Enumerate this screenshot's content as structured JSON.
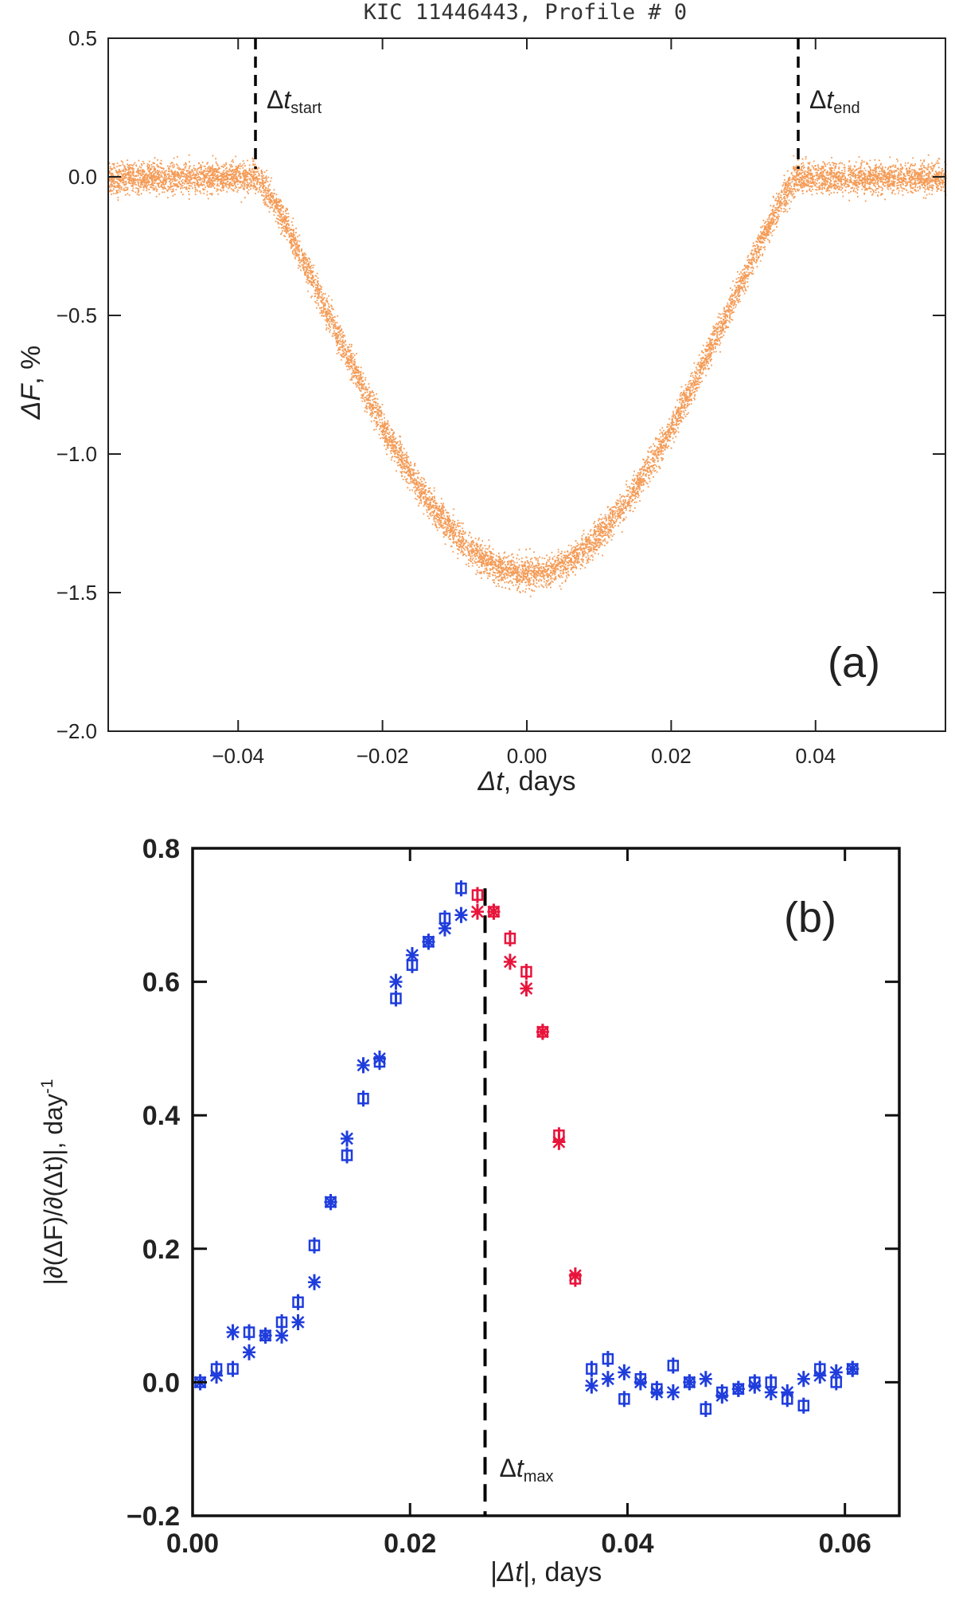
{
  "chart_data": [
    {
      "type": "scatter",
      "panel_label": "(a)",
      "title": "KIC 11446443, Profile # 0",
      "xlabel": {
        "sym": "Δt",
        "rest": ", days"
      },
      "ylabel": {
        "sym": "ΔF",
        "rest": ", %"
      },
      "xlim": [
        -0.058,
        0.058
      ],
      "ylim": [
        -2.0,
        0.5
      ],
      "xticks": [
        -0.04,
        -0.02,
        0.0,
        0.02,
        0.04
      ],
      "xtick_labels": [
        "−0.04",
        "−0.02",
        "0.00",
        "0.02",
        "0.04"
      ],
      "yticks": [
        0.5,
        0.0,
        -0.5,
        -1.0,
        -1.5,
        -2.0
      ],
      "ytick_labels": [
        "0.5",
        "0.0",
        "−0.5",
        "−1.0",
        "−1.5",
        "−2.0"
      ],
      "color": "#f07a1e",
      "transit_model": {
        "t_start": -0.0376,
        "t_end": 0.0376,
        "depth": -1.43,
        "noise_sd": 0.028,
        "n_points": 9000
      },
      "markers": [
        {
          "x": -0.0376,
          "label_sym": "Δt",
          "label_sub": "start"
        },
        {
          "x": 0.0376,
          "label_sym": "Δt",
          "label_sub": "end"
        }
      ]
    },
    {
      "type": "scatter",
      "panel_label": "(b)",
      "xlabel": {
        "sym": "|Δt|",
        "rest": ", days"
      },
      "ylabel": {
        "text": "|∂(ΔF)/∂(Δt)|, day",
        "sup": "-1"
      },
      "xlim": [
        0.0,
        0.065
      ],
      "ylim": [
        -0.2,
        0.8
      ],
      "xticks": [
        0.0,
        0.02,
        0.04,
        0.06
      ],
      "xtick_labels": [
        "0.00",
        "0.02",
        "0.04",
        "0.06"
      ],
      "yticks": [
        0.8,
        0.6,
        0.4,
        0.2,
        0.0,
        -0.2
      ],
      "ytick_labels": [
        "0.8",
        "0.6",
        "0.4",
        "0.2",
        "0.0",
        "−0.2"
      ],
      "marker": {
        "x": 0.0269,
        "label_sym": "Δt",
        "label_sub": "max"
      },
      "colors": {
        "blue": "#1f3ddc",
        "red": "#e8143c"
      },
      "series": [
        {
          "marker": "square",
          "x": [
            0.0007,
            0.0022,
            0.0037,
            0.0052,
            0.0067,
            0.0082,
            0.0097,
            0.0112,
            0.0127,
            0.0142,
            0.0157,
            0.0172,
            0.0187,
            0.0202,
            0.0217,
            0.0232,
            0.0247,
            0.0262,
            0.0277,
            0.0292,
            0.0307,
            0.0322,
            0.0337,
            0.0352,
            0.0367,
            0.0382,
            0.0397,
            0.0412,
            0.0427,
            0.0442,
            0.0457,
            0.0472,
            0.0487,
            0.0502,
            0.0517,
            0.0532,
            0.0547,
            0.0562,
            0.0577,
            0.0592,
            0.0607
          ],
          "y": [
            0.0,
            0.02,
            0.02,
            0.075,
            0.07,
            0.09,
            0.12,
            0.205,
            0.27,
            0.34,
            0.425,
            0.48,
            0.575,
            0.625,
            0.66,
            0.695,
            0.74,
            0.73,
            0.705,
            0.665,
            0.615,
            0.525,
            0.37,
            0.155,
            0.02,
            0.035,
            -0.025,
            0.005,
            -0.01,
            0.025,
            0.0,
            -0.04,
            -0.015,
            -0.01,
            0.0,
            0.0,
            -0.025,
            -0.035,
            0.02,
            0.0,
            0.02
          ],
          "colors": [
            "blue",
            "blue",
            "blue",
            "blue",
            "blue",
            "blue",
            "blue",
            "blue",
            "blue",
            "blue",
            "blue",
            "blue",
            "blue",
            "blue",
            "blue",
            "blue",
            "blue",
            "red",
            "red",
            "red",
            "red",
            "red",
            "red",
            "red",
            "blue",
            "blue",
            "blue",
            "blue",
            "blue",
            "blue",
            "blue",
            "blue",
            "blue",
            "blue",
            "blue",
            "blue",
            "blue",
            "blue",
            "blue",
            "blue",
            "blue"
          ]
        },
        {
          "marker": "star",
          "x": [
            0.0007,
            0.0022,
            0.0037,
            0.0052,
            0.0067,
            0.0082,
            0.0097,
            0.0112,
            0.0127,
            0.0142,
            0.0157,
            0.0172,
            0.0187,
            0.0202,
            0.0217,
            0.0232,
            0.0247,
            0.0262,
            0.0277,
            0.0292,
            0.0307,
            0.0322,
            0.0337,
            0.0352,
            0.0367,
            0.0382,
            0.0397,
            0.0412,
            0.0427,
            0.0442,
            0.0457,
            0.0472,
            0.0487,
            0.0502,
            0.0517,
            0.0532,
            0.0547,
            0.0562,
            0.0577,
            0.0592,
            0.0607
          ],
          "y": [
            0.0,
            0.01,
            0.075,
            0.045,
            0.07,
            0.07,
            0.09,
            0.15,
            0.27,
            0.365,
            0.475,
            0.485,
            0.6,
            0.64,
            0.66,
            0.68,
            0.7,
            0.705,
            0.705,
            0.63,
            0.59,
            0.525,
            0.36,
            0.16,
            -0.005,
            0.005,
            0.015,
            0.0,
            -0.015,
            -0.015,
            0.0,
            0.005,
            -0.02,
            -0.01,
            -0.005,
            -0.015,
            -0.015,
            0.005,
            0.01,
            0.015,
            0.02
          ],
          "colors": [
            "blue",
            "blue",
            "blue",
            "blue",
            "blue",
            "blue",
            "blue",
            "blue",
            "blue",
            "blue",
            "blue",
            "blue",
            "blue",
            "blue",
            "blue",
            "blue",
            "blue",
            "red",
            "red",
            "red",
            "red",
            "red",
            "red",
            "red",
            "blue",
            "blue",
            "blue",
            "blue",
            "blue",
            "blue",
            "blue",
            "blue",
            "blue",
            "blue",
            "blue",
            "blue",
            "blue",
            "blue",
            "blue",
            "blue",
            "blue"
          ]
        }
      ],
      "error_bar": 0.012
    }
  ]
}
